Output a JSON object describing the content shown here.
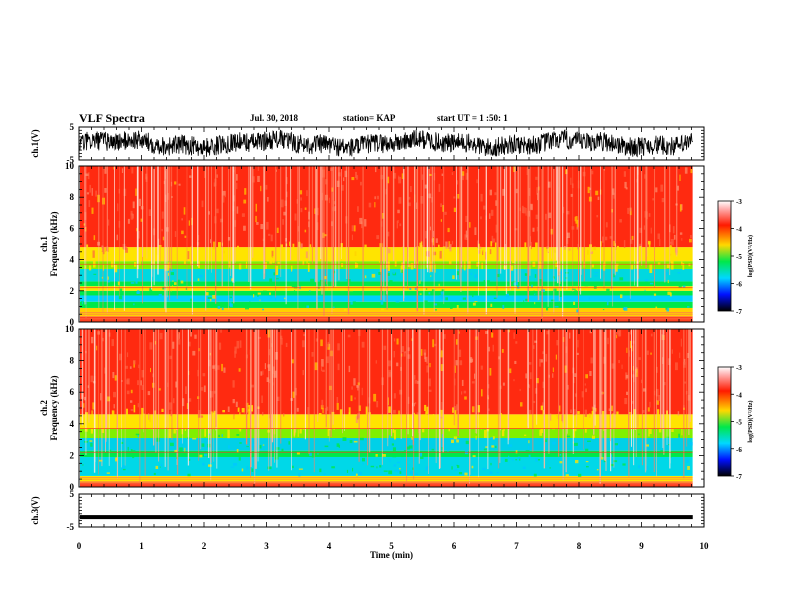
{
  "header": {
    "title": "VLF Spectra",
    "date": "Jul. 30, 2018",
    "station": "station= KAP",
    "start_ut": "start UT =  1 :50: 1"
  },
  "chart_data": [
    {
      "type": "line",
      "panel": "waveform-ch1",
      "ylabel": "ch.1(V)",
      "ylim": [
        -5,
        5
      ],
      "yticks": [
        "5",
        "-5"
      ],
      "xlim": [
        0,
        10
      ],
      "description_color": "#000000"
    },
    {
      "type": "heatmap",
      "panel": "spectrogram-ch1",
      "ylabel": "ch.1\nFrequency (kHz)",
      "ylabel_line1": "ch.1",
      "ylabel_line2": "Frequency (kHz)",
      "ylim": [
        0,
        10
      ],
      "yticks": [
        "0",
        "2",
        "4",
        "6",
        "8",
        "10"
      ],
      "xlim": [
        0,
        10
      ],
      "data_end_min": 9.82,
      "colorbar": {
        "label": "log(PSD)(V²/Hz)",
        "range": [
          -7,
          -3
        ],
        "ticks": [
          "-3",
          "-4",
          "-5",
          "-6",
          "-7"
        ]
      }
    },
    {
      "type": "heatmap",
      "panel": "spectrogram-ch2",
      "ylabel_line1": "ch.2",
      "ylabel_line2": "Frequency (kHz)",
      "ylim": [
        0,
        10
      ],
      "yticks": [
        "0",
        "2",
        "4",
        "6",
        "8",
        "10"
      ],
      "xlim": [
        0,
        10
      ],
      "data_end_min": 9.82,
      "colorbar": {
        "label": "log(PSD)(V²/Hz)",
        "range": [
          -7,
          -3
        ],
        "ticks": [
          "-3",
          "-4",
          "-5",
          "-6",
          "-7"
        ]
      }
    },
    {
      "type": "line",
      "panel": "waveform-ch3",
      "ylabel": "ch.3(V)",
      "ylim": [
        -5,
        5
      ],
      "yticks": [
        "5",
        "-5"
      ],
      "xlim": [
        0,
        10
      ],
      "level": -2
    }
  ],
  "xaxis": {
    "label": "Time (min)",
    "ticks": [
      "0",
      "1",
      "2",
      "3",
      "4",
      "5",
      "6",
      "7",
      "8",
      "9",
      "10"
    ]
  },
  "colors": {
    "hot": "#ff2a10",
    "warm": "#ffe400",
    "mid": "#00e85a",
    "cool": "#00d8e8",
    "trace": "#000000"
  }
}
